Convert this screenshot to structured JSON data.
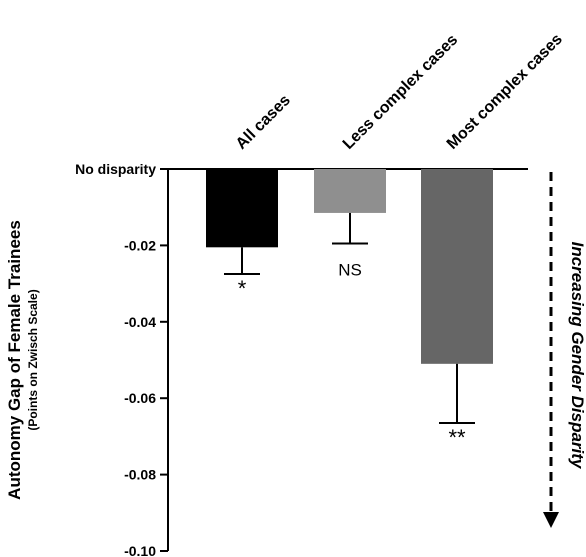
{
  "chart_data": {
    "type": "bar",
    "categories": [
      "All cases",
      "Less complex cases",
      "Most complex cases"
    ],
    "values": [
      -0.0205,
      -0.0115,
      -0.051
    ],
    "error_low": [
      -0.0275,
      -0.0195,
      -0.0665
    ],
    "significance": [
      "*",
      "NS",
      "**"
    ],
    "colors": [
      "#000000",
      "#8f8f8f",
      "#666666"
    ],
    "ylim": [
      -0.1,
      0
    ],
    "yticks": [
      {
        "value": 0,
        "label": "No disparity"
      },
      {
        "value": -0.02,
        "label": "-0.02"
      },
      {
        "value": -0.04,
        "label": "-0.04"
      },
      {
        "value": -0.06,
        "label": "-0.06"
      },
      {
        "value": -0.08,
        "label": "-0.08"
      },
      {
        "value": -0.1,
        "label": "-0.10"
      }
    ],
    "ylabel": "Autonomy Gap of Female Trainees",
    "ylabel_sub": "(Points on Zwisch Scale)",
    "annotation": "Increasing Gender Disparity"
  }
}
